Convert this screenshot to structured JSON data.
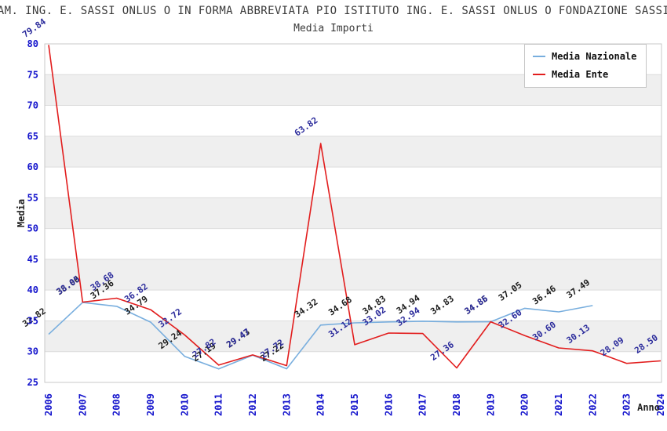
{
  "title": "AM. ING. E. SASSI ONLUS O IN FORMA ABBREVIATA PIO ISTITUTO ING. E. SASSI ONLUS O FONDAZIONE SASSI",
  "subtitle": "Media Importi",
  "legend": {
    "items": [
      {
        "label": "Media Nazionale",
        "color": "#78aede"
      },
      {
        "label": "Media Ente",
        "color": "#e21d1d"
      }
    ]
  },
  "colors": {
    "tick_label": "#1414cc",
    "axis_title": "#222222",
    "grid_line": "#dcdcdc",
    "plot_border": "#c9c9c9",
    "band_fill": "#efefef",
    "background": "#ffffff"
  },
  "chart_data": {
    "type": "line",
    "title": "Media Importi",
    "xlabel": "Anno",
    "ylabel": "Media",
    "ylim": [
      25,
      80
    ],
    "y_ticks": [
      25,
      30,
      35,
      40,
      45,
      50,
      55,
      60,
      65,
      70,
      75,
      80
    ],
    "band_ranges": [
      [
        30,
        35
      ],
      [
        40,
        45
      ],
      [
        50,
        55
      ],
      [
        60,
        65
      ],
      [
        70,
        75
      ]
    ],
    "grid": true,
    "legend_position": "top-right",
    "x": [
      2006,
      2007,
      2008,
      2009,
      2010,
      2011,
      2012,
      2013,
      2014,
      2015,
      2016,
      2017,
      2018,
      2019,
      2020,
      2021,
      2022,
      2023,
      2024
    ],
    "series": [
      {
        "name": "Media Nazionale",
        "color": "#78aede",
        "label_color": "#1c1c1c",
        "values": [
          32.82,
          38.0,
          37.36,
          34.79,
          29.24,
          27.19,
          29.43,
          27.22,
          34.32,
          34.68,
          34.83,
          34.94,
          34.83,
          34.85,
          37.05,
          36.46,
          37.49,
          null,
          null
        ]
      },
      {
        "name": "Media Ente",
        "color": "#e21d1d",
        "label_color": "#2c2c9c",
        "values": [
          79.84,
          38.05,
          38.68,
          36.82,
          32.72,
          27.82,
          29.47,
          27.72,
          63.82,
          31.12,
          33.02,
          32.94,
          27.36,
          34.86,
          32.6,
          30.6,
          30.13,
          28.09,
          28.5
        ]
      }
    ]
  }
}
